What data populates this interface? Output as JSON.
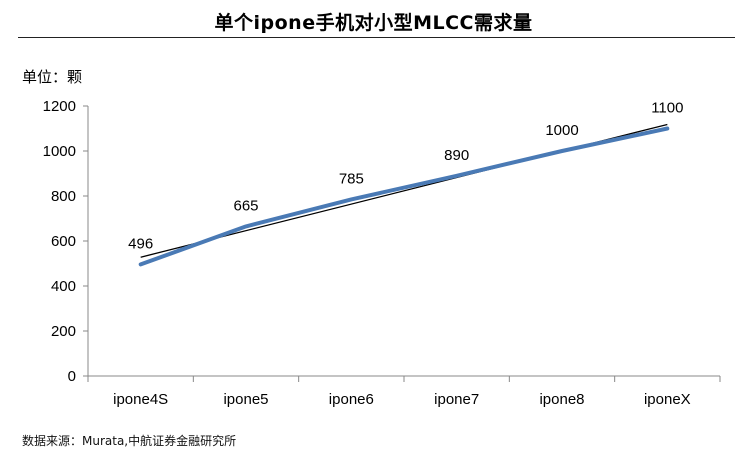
{
  "chart_data": {
    "type": "line",
    "title": "单个ipone手机对小型MLCC需求量",
    "ylabel": "单位：颗",
    "xlabel": "",
    "categories": [
      "ipone4S",
      "ipone5",
      "ipone6",
      "ipone7",
      "ipone8",
      "iponeX"
    ],
    "series": [
      {
        "values": [
          496,
          665,
          785,
          890,
          1000,
          1100
        ],
        "color": "#4a7ab5"
      }
    ],
    "trendline": {
      "start": 528,
      "end": 1118,
      "color": "#000000"
    },
    "yticks": [
      0,
      200,
      400,
      600,
      800,
      1000,
      1200
    ],
    "ylim": [
      0,
      1200
    ],
    "grid": false,
    "data_labels": true
  },
  "footer": {
    "source": "数据来源：Murata,中航证券金融研究所"
  }
}
